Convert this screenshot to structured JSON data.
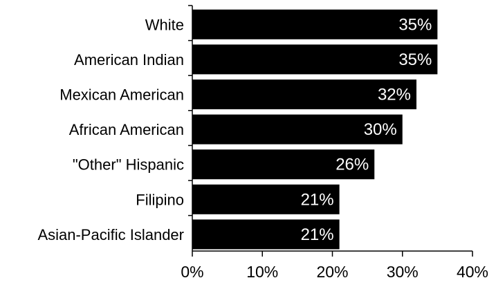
{
  "chart_data": {
    "type": "bar",
    "orientation": "horizontal",
    "categories": [
      "White",
      "American Indian",
      "Mexican American",
      "African American",
      "\"Other\" Hispanic",
      "Filipino",
      "Asian-Pacific Islander"
    ],
    "values": [
      35,
      35,
      32,
      30,
      26,
      21,
      21
    ],
    "data_labels": [
      "35%",
      "35%",
      "32%",
      "30%",
      "26%",
      "21%",
      "21%"
    ],
    "x_ticks": [
      0,
      10,
      20,
      30,
      40
    ],
    "x_tick_labels": [
      "0%",
      "10%",
      "20%",
      "30%",
      "40%"
    ],
    "xlim": [
      0,
      40
    ],
    "title": "",
    "xlabel": "",
    "ylabel": "",
    "grid": false,
    "legend": "none",
    "colors": {
      "bar": "#000000",
      "data_label": "#ffffff",
      "axis": "#000000",
      "text": "#000000"
    }
  }
}
